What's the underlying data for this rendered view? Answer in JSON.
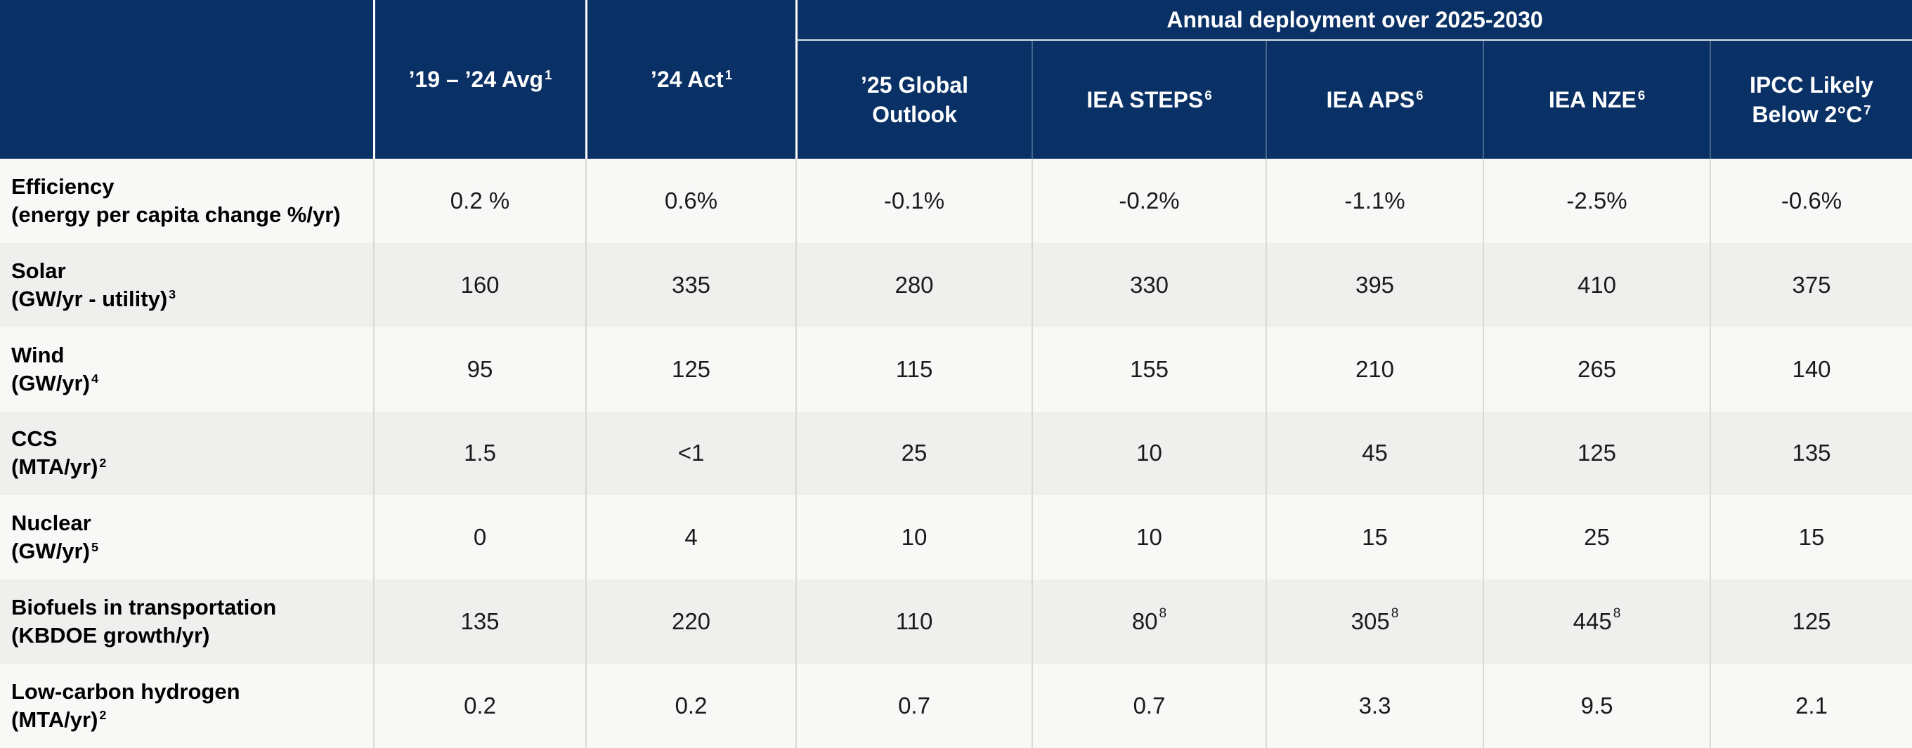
{
  "colors": {
    "header_navy": "#0a3166",
    "header_text": "#ffffff",
    "row_stripe_light": "#f8f8f7",
    "row_stripe_dark": "#efefee",
    "grid_line": "#d9d9d8",
    "body_text": "#1b1b1b"
  },
  "table": {
    "group_header": "Annual deployment over 2025-2030",
    "columns": [
      "’19 – ’24 Avg¹",
      "’24 Act¹",
      "’25 Global\nOutlook",
      "IEA STEPS⁶",
      "IEA APS⁶",
      "IEA NZE⁶",
      "IPCC Likely\nBelow 2°C⁷"
    ],
    "rows": [
      {
        "name": "Efficiency",
        "unit": "(energy per capita change %/yr)",
        "values": [
          "0.2 %",
          "0.6%",
          "-0.1%",
          "-0.2%",
          "-1.1%",
          "-2.5%",
          "-0.6%"
        ]
      },
      {
        "name": "Solar",
        "unit": "(GW/yr - utility)³",
        "values": [
          "160",
          "335",
          "280",
          "330",
          "395",
          "410",
          "375"
        ]
      },
      {
        "name": "Wind",
        "unit": "(GW/yr)⁴",
        "values": [
          "95",
          "125",
          "115",
          "155",
          "210",
          "265",
          "140"
        ]
      },
      {
        "name": "CCS",
        "unit": "(MTA/yr)²",
        "values": [
          "1.5",
          "<1",
          "25",
          "10",
          "45",
          "125",
          "135"
        ]
      },
      {
        "name": "Nuclear",
        "unit": "(GW/yr)⁵",
        "values": [
          "0",
          "4",
          "10",
          "10",
          "15",
          "25",
          "15"
        ]
      },
      {
        "name": "Biofuels in transportation",
        "unit": "(KBDOE growth/yr)",
        "values": [
          "135",
          "220",
          "110",
          "80⁸",
          "305⁸",
          "445⁸",
          "125"
        ]
      },
      {
        "name": "Low-carbon hydrogen",
        "unit": "(MTA/yr)²",
        "values": [
          "0.2",
          "0.2",
          "0.7",
          "0.7",
          "3.3",
          "9.5",
          "2.1"
        ]
      }
    ]
  }
}
